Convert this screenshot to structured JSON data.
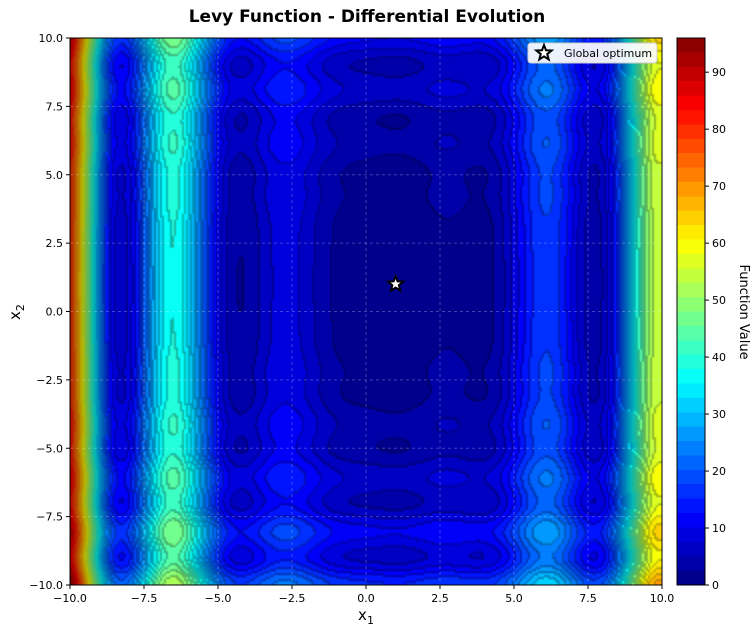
{
  "chart_data": {
    "type": "heatmap",
    "title": "Levy Function - Differential Evolution",
    "xlabel": "x",
    "xlabel_sub": "1",
    "ylabel": "x",
    "ylabel_sub": "2",
    "xlim": [
      -10,
      10
    ],
    "ylim": [
      -10,
      10
    ],
    "x_ticks": [
      "−10.0",
      "−7.5",
      "−5.0",
      "−2.5",
      "0.0",
      "2.5",
      "5.0",
      "7.5",
      "10.0"
    ],
    "x_tick_values": [
      -10,
      -7.5,
      -5,
      -2.5,
      0,
      2.5,
      5,
      7.5,
      10
    ],
    "y_ticks": [
      "−10.0",
      "−7.5",
      "−5.0",
      "−2.5",
      "0.0",
      "2.5",
      "5.0",
      "7.5",
      "10.0"
    ],
    "y_tick_values": [
      -10,
      -7.5,
      -5,
      -2.5,
      0,
      2.5,
      5,
      7.5,
      10
    ],
    "grid": true,
    "colormap": "jet",
    "colorbar": {
      "label": "Function Value",
      "range": [
        0,
        96
      ],
      "ticks": [
        "0",
        "10",
        "20",
        "30",
        "40",
        "50",
        "60",
        "70",
        "80",
        "90"
      ],
      "tick_values": [
        0,
        10,
        20,
        30,
        40,
        50,
        60,
        70,
        80,
        90
      ]
    },
    "function": "levy",
    "markers": [
      {
        "name": "Global optimum",
        "x": 1,
        "y": 1,
        "symbol": "star"
      }
    ],
    "legend": {
      "label": "Global optimum",
      "placement": "top-right"
    }
  }
}
